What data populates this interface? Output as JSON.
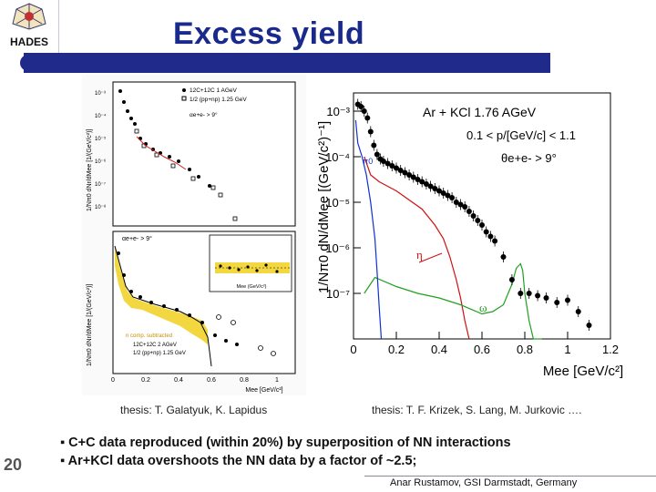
{
  "header": {
    "logo_text": "HADES",
    "title": "Excess yield"
  },
  "colors": {
    "title": "#1a2a8c",
    "bar": "#1f2a8a",
    "eta": "#d01010",
    "omega": "#20a020",
    "pi0": "#1030d0",
    "band": "#f0d020"
  },
  "captions": {
    "left": "thesis: T. Galatyuk, K. Lapidus",
    "right": "thesis: T. F. Krizek, S. Lang, M. Jurkovic …."
  },
  "left_figure": {
    "top_panel": {
      "legend": [
        "12C+12C 1 AGeV",
        "1/2 (pp+np) 1.25 GeV",
        "αe+e- > 9°"
      ],
      "y_ticks": [
        "10⁻³",
        "10⁻⁴",
        "10⁻⁵",
        "10⁻⁶",
        "10⁻⁷",
        "10⁻⁸"
      ],
      "y_label": "1/Nπ0 dNr/dMee [1/(GeV/c²)]"
    },
    "bottom_panel": {
      "legend": [
        "n comp. subtracted",
        "12C+12C 2 AGeV",
        "1/2 (pp+np) 1.25 GeV"
      ],
      "alpha": "αe+e- > 9°",
      "inset_x_label": "Mee (GeV/c²)",
      "x_ticks": [
        "0",
        "0.2",
        "0.4",
        "0.6",
        "0.8",
        "1"
      ],
      "x_label": "Mee [GeV/c²]",
      "y_label": "1/Nπ0 dNr/dMee [1/(GeV/c²)]"
    }
  },
  "chart_data": {
    "type": "scatter",
    "title": "Ar + KCl  1.76 AGeV",
    "annotations": [
      "0.1 < p/[GeV/c] < 1.1",
      "θe+e- > 9°",
      "η",
      "ω",
      "π0"
    ],
    "xlabel": "Mee [GeV/c²]",
    "ylabel": "1/Nπ0 dN/dMee [(GeV/c²)⁻¹]",
    "xlim": [
      0,
      1.2
    ],
    "ylim_log10": [
      -8,
      -2.6
    ],
    "x_ticks": [
      "0",
      "0.2",
      "0.4",
      "0.6",
      "0.8",
      "1",
      "1.2"
    ],
    "y_ticks": [
      "10⁻³",
      "10⁻⁴",
      "10⁻⁵",
      "10⁻⁶",
      "10⁻⁷"
    ],
    "y_tick_exponents": [
      -3,
      -4,
      -5,
      -6,
      -7
    ],
    "series": [
      {
        "name": "data",
        "x": [
          0.02,
          0.035,
          0.05,
          0.065,
          0.08,
          0.095,
          0.11,
          0.125,
          0.14,
          0.16,
          0.18,
          0.2,
          0.22,
          0.24,
          0.26,
          0.28,
          0.3,
          0.32,
          0.34,
          0.36,
          0.38,
          0.4,
          0.42,
          0.44,
          0.46,
          0.48,
          0.5,
          0.52,
          0.54,
          0.56,
          0.58,
          0.6,
          0.62,
          0.64,
          0.66,
          0.7,
          0.74,
          0.78,
          0.82,
          0.86,
          0.9,
          0.95,
          1.0,
          1.05,
          1.1
        ],
        "y_log10": [
          -2.85,
          -2.9,
          -3.0,
          -3.15,
          -3.45,
          -3.75,
          -3.95,
          -4.05,
          -4.1,
          -4.15,
          -4.2,
          -4.25,
          -4.3,
          -4.35,
          -4.4,
          -4.45,
          -4.5,
          -4.55,
          -4.6,
          -4.65,
          -4.7,
          -4.75,
          -4.8,
          -4.85,
          -4.9,
          -5.0,
          -5.05,
          -5.1,
          -5.2,
          -5.3,
          -5.4,
          -5.5,
          -5.65,
          -5.75,
          -5.85,
          -6.2,
          -6.7,
          -7.0,
          -7.0,
          -7.05,
          -7.1,
          -7.2,
          -7.15,
          -7.4,
          -7.7
        ]
      },
      {
        "name": "η",
        "x": [
          0.05,
          0.08,
          0.12,
          0.16,
          0.2,
          0.26,
          0.32,
          0.38,
          0.42,
          0.45,
          0.48,
          0.5,
          0.52,
          0.54
        ],
        "y_log10": [
          -4.0,
          -4.4,
          -4.55,
          -4.65,
          -4.75,
          -4.95,
          -5.15,
          -5.5,
          -5.8,
          -6.2,
          -6.7,
          -7.1,
          -7.6,
          -8.0
        ]
      },
      {
        "name": "ω",
        "x": [
          0.05,
          0.1,
          0.2,
          0.3,
          0.4,
          0.5,
          0.6,
          0.65,
          0.7,
          0.74,
          0.76,
          0.78,
          0.79,
          0.8,
          0.82,
          0.84,
          0.86,
          0.88
        ],
        "y_log10": [
          -7.0,
          -6.65,
          -6.85,
          -7.0,
          -7.1,
          -7.25,
          -7.45,
          -7.4,
          -7.25,
          -6.8,
          -6.45,
          -6.35,
          -6.5,
          -7.0,
          -7.6,
          -8.0,
          -8.0,
          -8.0
        ],
        "note": "curve leaves the frame bottom"
      },
      {
        "name": "π0",
        "x": [
          0.01,
          0.02,
          0.04,
          0.06,
          0.08,
          0.1,
          0.11,
          0.12,
          0.13
        ],
        "y_log10": [
          -3.2,
          -3.7,
          -4.0,
          -4.4,
          -5.0,
          -5.8,
          -6.5,
          -7.3,
          -8.0
        ]
      }
    ]
  },
  "bullets": [
    "▪ C+C data reproduced (within 20%) by superposition of NN interactions",
    "▪ Ar+KCl data overshoots the NN data by a factor of ~2.5;"
  ],
  "footer": {
    "slide_number": "20",
    "author": "Anar Rustamov, GSI Darmstadt, Germany"
  }
}
